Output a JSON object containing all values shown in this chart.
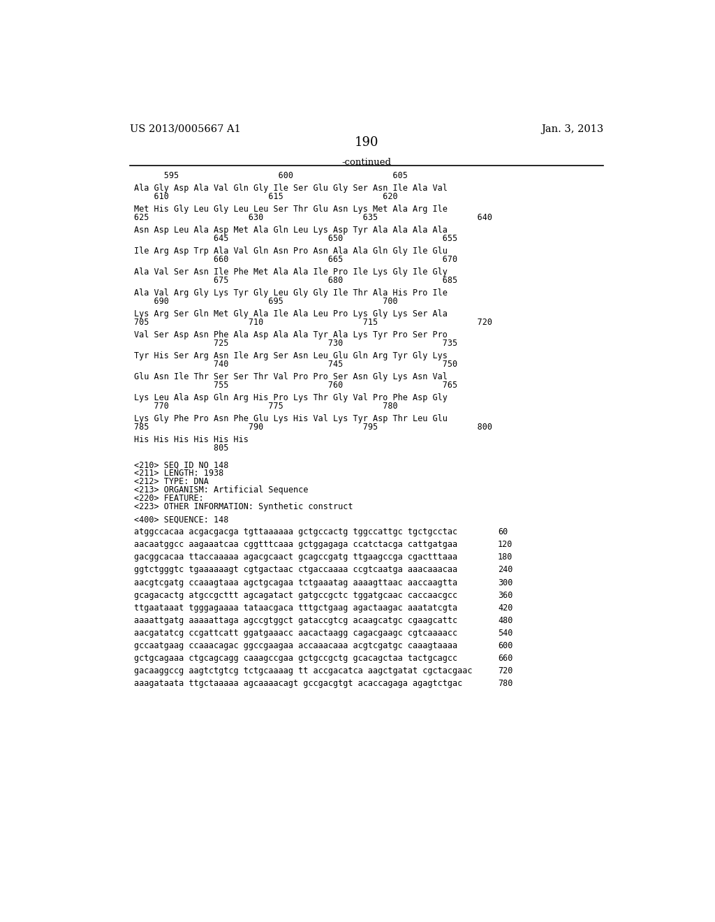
{
  "header_left": "US 2013/0005667 A1",
  "header_right": "Jan. 3, 2013",
  "page_number": "190",
  "continued_label": "-continued",
  "background_color": "#ffffff",
  "text_color": "#000000",
  "content_lines": [
    {
      "type": "numbers",
      "text": "      595                    600                    605"
    },
    {
      "type": "blank"
    },
    {
      "type": "seq",
      "text": "Ala Gly Asp Ala Val Gln Gly Ile Ser Glu Gly Ser Asn Ile Ala Val"
    },
    {
      "type": "numbers",
      "text": "    610                    615                    620"
    },
    {
      "type": "blank"
    },
    {
      "type": "seq",
      "text": "Met His Gly Leu Gly Leu Leu Ser Thr Glu Asn Lys Met Ala Arg Ile"
    },
    {
      "type": "numbers",
      "text": "625                    630                    635                    640"
    },
    {
      "type": "blank"
    },
    {
      "type": "seq",
      "text": "Asn Asp Leu Ala Asp Met Ala Gln Leu Lys Asp Tyr Ala Ala Ala Ala"
    },
    {
      "type": "numbers",
      "text": "                645                    650                    655"
    },
    {
      "type": "blank"
    },
    {
      "type": "seq",
      "text": "Ile Arg Asp Trp Ala Val Gln Asn Pro Asn Ala Ala Gln Gly Ile Glu"
    },
    {
      "type": "numbers",
      "text": "                660                    665                    670"
    },
    {
      "type": "blank"
    },
    {
      "type": "seq",
      "text": "Ala Val Ser Asn Ile Phe Met Ala Ala Ile Pro Ile Lys Gly Ile Gly"
    },
    {
      "type": "numbers",
      "text": "                675                    680                    685"
    },
    {
      "type": "blank"
    },
    {
      "type": "seq",
      "text": "Ala Val Arg Gly Lys Tyr Gly Leu Gly Gly Ile Thr Ala His Pro Ile"
    },
    {
      "type": "numbers",
      "text": "    690                    695                    700"
    },
    {
      "type": "blank"
    },
    {
      "type": "seq",
      "text": "Lys Arg Ser Gln Met Gly Ala Ile Ala Leu Pro Lys Gly Lys Ser Ala"
    },
    {
      "type": "numbers",
      "text": "705                    710                    715                    720"
    },
    {
      "type": "blank"
    },
    {
      "type": "seq",
      "text": "Val Ser Asp Asn Phe Ala Asp Ala Ala Tyr Ala Lys Tyr Pro Ser Pro"
    },
    {
      "type": "numbers",
      "text": "                725                    730                    735"
    },
    {
      "type": "blank"
    },
    {
      "type": "seq",
      "text": "Tyr His Ser Arg Asn Ile Arg Ser Asn Leu Glu Gln Arg Tyr Gly Lys"
    },
    {
      "type": "numbers",
      "text": "                740                    745                    750"
    },
    {
      "type": "blank"
    },
    {
      "type": "seq",
      "text": "Glu Asn Ile Thr Ser Ser Thr Val Pro Pro Ser Asn Gly Lys Asn Val"
    },
    {
      "type": "numbers",
      "text": "                755                    760                    765"
    },
    {
      "type": "blank"
    },
    {
      "type": "seq",
      "text": "Lys Leu Ala Asp Gln Arg His Pro Lys Thr Gly Val Pro Phe Asp Gly"
    },
    {
      "type": "numbers",
      "text": "    770                    775                    780"
    },
    {
      "type": "blank"
    },
    {
      "type": "seq",
      "text": "Lys Gly Phe Pro Asn Phe Glu Lys His Val Lys Tyr Asp Thr Leu Glu"
    },
    {
      "type": "numbers",
      "text": "785                    790                    795                    800"
    },
    {
      "type": "blank"
    },
    {
      "type": "seq",
      "text": "His His His His His His"
    },
    {
      "type": "numbers",
      "text": "                805"
    },
    {
      "type": "blank"
    },
    {
      "type": "blank"
    },
    {
      "type": "meta",
      "text": "<210> SEQ ID NO 148"
    },
    {
      "type": "meta",
      "text": "<211> LENGTH: 1938"
    },
    {
      "type": "meta",
      "text": "<212> TYPE: DNA"
    },
    {
      "type": "meta",
      "text": "<213> ORGANISM: Artificial Sequence"
    },
    {
      "type": "meta",
      "text": "<220> FEATURE:"
    },
    {
      "type": "meta",
      "text": "<223> OTHER INFORMATION: Synthetic construct"
    },
    {
      "type": "blank"
    },
    {
      "type": "meta",
      "text": "<400> SEQUENCE: 148"
    },
    {
      "type": "blank"
    },
    {
      "type": "dna",
      "text": "atggccacaa acgacgacga tgttaaaaaa gctgccactg tggccattgc tgctgcctac",
      "num": "60"
    },
    {
      "type": "blank"
    },
    {
      "type": "dna",
      "text": "aacaatggcc aagaaatcaa cggtttcaaa gctggagaga ccatctacga cattgatgaa",
      "num": "120"
    },
    {
      "type": "blank"
    },
    {
      "type": "dna",
      "text": "gacggcacaa ttaccaaaaa agacgcaact gcagccgatg ttgaagccga cgactttaaa",
      "num": "180"
    },
    {
      "type": "blank"
    },
    {
      "type": "dna",
      "text": "ggtctgggtc tgaaaaaagt cgtgactaac ctgaccaaaa ccgtcaatga aaacaaacaa",
      "num": "240"
    },
    {
      "type": "blank"
    },
    {
      "type": "dna",
      "text": "aacgtcgatg ccaaagtaaa agctgcagaa tctgaaatag aaaagttaac aaccaagtta",
      "num": "300"
    },
    {
      "type": "blank"
    },
    {
      "type": "dna",
      "text": "gcagacactg atgccgcttt agcagatact gatgccgctc tggatgcaac caccaacgcc",
      "num": "360"
    },
    {
      "type": "blank"
    },
    {
      "type": "dna",
      "text": "ttgaataaat tgggagaaaa tataacgaca tttgctgaag agactaagac aaatatcgta",
      "num": "420"
    },
    {
      "type": "blank"
    },
    {
      "type": "dna",
      "text": "aaaattgatg aaaaattaga agccgtggct gataccgtcg acaagcatgc cgaagcattc",
      "num": "480"
    },
    {
      "type": "blank"
    },
    {
      "type": "dna",
      "text": "aacgatatcg ccgattcatt ggatgaaacc aacactaagg cagacgaagc cgtcaaaacc",
      "num": "540"
    },
    {
      "type": "blank"
    },
    {
      "type": "dna",
      "text": "gccaatgaag ccaaacagac ggccgaagaa accaaacaaa acgtcgatgc caaagtaaaa",
      "num": "600"
    },
    {
      "type": "blank"
    },
    {
      "type": "dna",
      "text": "gctgcagaaa ctgcagcagg caaagccgaa gctgccgctg gcacagctaa tactgcagcc",
      "num": "660"
    },
    {
      "type": "blank"
    },
    {
      "type": "dna",
      "text": "gacaaggccg aagtctgtcg tctgcaaaag tt accgacatca aagctgatat cgctacgaac",
      "num": "720"
    },
    {
      "type": "blank"
    },
    {
      "type": "dna",
      "text": "aaagataata ttgctaaaaa agcaaaacagt gccgacgtgt acaccagaga agagtctgac",
      "num": "780"
    }
  ]
}
